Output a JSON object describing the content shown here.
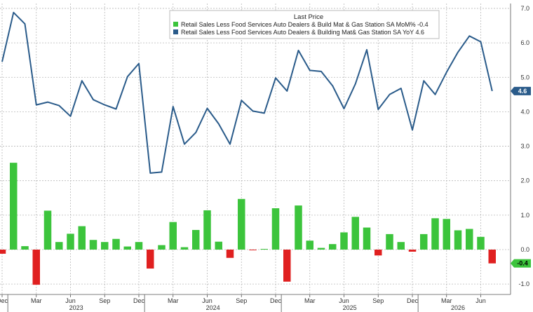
{
  "chart_data": {
    "type": "bar",
    "legend_title": "Last Price",
    "legend_placement": "top-center",
    "ylim": [
      -1.2,
      7.5
    ],
    "y_ticks": [
      "-1.0",
      "0.0",
      "1.0",
      "2.0",
      "3.0",
      "4.0",
      "5.0",
      "6.0",
      "7.0"
    ],
    "x_ticks": [
      "Dec",
      "Mar",
      "Jun",
      "Sep",
      "Dec",
      "Mar",
      "Jun",
      "Sep",
      "Dec",
      "Mar",
      "Jun",
      "Sep",
      "Dec",
      "Mar",
      "Jun"
    ],
    "years": [
      "2023",
      "2024",
      "2025",
      "2026"
    ],
    "grid": true,
    "colors": {
      "line": "#2a5b8a",
      "bar_positive": "#3cc43c",
      "bar_negative": "#e02020",
      "line_badge": "#2a5b8a",
      "bar_badge": "#3cc43c"
    },
    "series": [
      {
        "name": "Retail Sales Less Food Services Auto Dealers & Build Mat & Gas Station SA MoM% -0.4",
        "type": "bar",
        "last_label": "-0.4",
        "values": [
          -0.12,
          2.52,
          0.1,
          -1.02,
          1.13,
          0.22,
          0.46,
          0.68,
          0.28,
          0.22,
          0.31,
          0.09,
          0.22,
          -0.55,
          0.13,
          0.8,
          0.07,
          0.57,
          1.14,
          0.23,
          -0.24,
          1.47,
          -0.02,
          0.02,
          1.2,
          -0.93,
          1.28,
          0.26,
          0.05,
          0.16,
          0.5,
          0.95,
          0.64,
          -0.17,
          0.45,
          0.22,
          -0.06,
          0.45,
          0.91,
          0.89,
          0.56,
          0.6,
          0.37,
          -0.4
        ]
      },
      {
        "name": "Retail Sales Less Food Services Auto Dealers & Building Mat& Gas Station SA YoY 4.6",
        "type": "line",
        "last_label": "4.6",
        "values": [
          5.45,
          6.88,
          6.55,
          4.2,
          4.28,
          4.18,
          3.87,
          4.9,
          4.35,
          4.2,
          4.08,
          5.02,
          5.4,
          2.22,
          2.25,
          4.15,
          3.06,
          3.4,
          4.1,
          3.65,
          3.06,
          4.33,
          4.02,
          3.96,
          4.98,
          4.6,
          5.78,
          5.2,
          5.17,
          4.75,
          4.09,
          4.81,
          5.8,
          4.07,
          4.5,
          4.68,
          3.47,
          4.9,
          4.5,
          5.15,
          5.73,
          6.2,
          6.03,
          4.6
        ]
      }
    ]
  }
}
